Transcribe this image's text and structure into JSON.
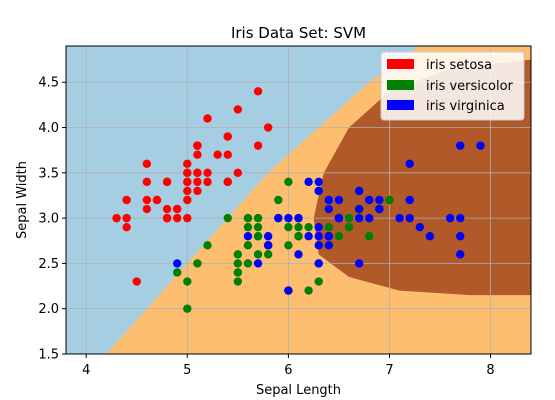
{
  "chart_data": {
    "type": "scatter",
    "title": "Iris Data Set: SVM",
    "xlabel": "Sepal Length",
    "ylabel": "Sepal Width",
    "xlim": [
      3.8,
      8.4
    ],
    "ylim": [
      1.5,
      4.9
    ],
    "xticks": [
      4,
      5,
      6,
      7,
      8
    ],
    "yticks": [
      1.5,
      2.0,
      2.5,
      3.0,
      3.5,
      4.0,
      4.5
    ],
    "grid": true,
    "legend_position": "top-right",
    "background_regions": {
      "setosa_region_color": "#a6cee3",
      "versicolor_region_color": "#fdbf6f",
      "virginica_region_color": "#b15928"
    },
    "series": [
      {
        "name": "iris setosa",
        "color": "#ff0000",
        "points": [
          [
            5.1,
            3.5
          ],
          [
            4.9,
            3.0
          ],
          [
            4.7,
            3.2
          ],
          [
            4.6,
            3.1
          ],
          [
            5.0,
            3.6
          ],
          [
            5.4,
            3.9
          ],
          [
            4.6,
            3.4
          ],
          [
            5.0,
            3.4
          ],
          [
            4.4,
            2.9
          ],
          [
            4.9,
            3.1
          ],
          [
            5.4,
            3.7
          ],
          [
            4.8,
            3.4
          ],
          [
            4.8,
            3.0
          ],
          [
            4.3,
            3.0
          ],
          [
            5.8,
            4.0
          ],
          [
            5.7,
            4.4
          ],
          [
            5.4,
            3.9
          ],
          [
            5.1,
            3.5
          ],
          [
            5.7,
            3.8
          ],
          [
            5.1,
            3.8
          ],
          [
            5.4,
            3.4
          ],
          [
            5.1,
            3.7
          ],
          [
            4.6,
            3.6
          ],
          [
            5.1,
            3.3
          ],
          [
            4.8,
            3.4
          ],
          [
            5.0,
            3.0
          ],
          [
            5.0,
            3.4
          ],
          [
            5.2,
            3.5
          ],
          [
            5.2,
            3.4
          ],
          [
            4.7,
            3.2
          ],
          [
            4.8,
            3.1
          ],
          [
            5.4,
            3.4
          ],
          [
            5.2,
            4.1
          ],
          [
            5.5,
            4.2
          ],
          [
            4.9,
            3.1
          ],
          [
            5.0,
            3.2
          ],
          [
            5.5,
            3.5
          ],
          [
            4.4,
            3.0
          ],
          [
            5.1,
            3.4
          ],
          [
            5.0,
            3.5
          ],
          [
            4.5,
            2.3
          ],
          [
            4.4,
            3.2
          ],
          [
            5.0,
            3.5
          ],
          [
            5.1,
            3.8
          ],
          [
            4.8,
            3.0
          ],
          [
            5.1,
            3.8
          ],
          [
            4.6,
            3.2
          ],
          [
            5.3,
            3.7
          ],
          [
            5.0,
            3.3
          ]
        ]
      },
      {
        "name": "iris versicolor",
        "color": "#008000",
        "points": [
          [
            7.0,
            3.2
          ],
          [
            6.4,
            3.2
          ],
          [
            6.9,
            3.1
          ],
          [
            5.5,
            2.3
          ],
          [
            6.5,
            2.8
          ],
          [
            5.7,
            2.8
          ],
          [
            6.3,
            3.3
          ],
          [
            4.9,
            2.4
          ],
          [
            6.6,
            2.9
          ],
          [
            5.2,
            2.7
          ],
          [
            5.0,
            2.0
          ],
          [
            5.9,
            3.0
          ],
          [
            6.0,
            2.2
          ],
          [
            6.1,
            2.9
          ],
          [
            5.6,
            2.9
          ],
          [
            6.7,
            3.1
          ],
          [
            5.6,
            3.0
          ],
          [
            5.8,
            2.7
          ],
          [
            6.2,
            2.2
          ],
          [
            5.6,
            2.5
          ],
          [
            5.9,
            3.2
          ],
          [
            6.1,
            2.8
          ],
          [
            6.3,
            2.5
          ],
          [
            6.1,
            2.8
          ],
          [
            6.4,
            2.9
          ],
          [
            6.6,
            3.0
          ],
          [
            6.8,
            2.8
          ],
          [
            6.7,
            3.0
          ],
          [
            6.0,
            2.9
          ],
          [
            5.7,
            2.6
          ],
          [
            5.5,
            2.4
          ],
          [
            5.5,
            2.4
          ],
          [
            5.8,
            2.7
          ],
          [
            6.0,
            2.7
          ],
          [
            5.4,
            3.0
          ],
          [
            6.0,
            3.4
          ],
          [
            6.7,
            3.1
          ],
          [
            6.3,
            2.3
          ],
          [
            5.6,
            3.0
          ],
          [
            5.5,
            2.5
          ],
          [
            5.5,
            2.6
          ],
          [
            6.1,
            3.0
          ],
          [
            5.8,
            2.6
          ],
          [
            5.0,
            2.3
          ],
          [
            5.6,
            2.7
          ],
          [
            5.7,
            3.0
          ],
          [
            5.7,
            2.9
          ],
          [
            6.2,
            2.9
          ],
          [
            5.1,
            2.5
          ],
          [
            5.7,
            2.8
          ]
        ]
      },
      {
        "name": "iris virginica",
        "color": "#0000ff",
        "points": [
          [
            6.3,
            3.3
          ],
          [
            5.8,
            2.7
          ],
          [
            7.1,
            3.0
          ],
          [
            6.3,
            2.9
          ],
          [
            6.5,
            3.0
          ],
          [
            7.6,
            3.0
          ],
          [
            4.9,
            2.5
          ],
          [
            7.3,
            2.9
          ],
          [
            6.7,
            2.5
          ],
          [
            7.2,
            3.6
          ],
          [
            6.5,
            3.2
          ],
          [
            6.4,
            2.7
          ],
          [
            6.8,
            3.0
          ],
          [
            5.7,
            2.5
          ],
          [
            5.8,
            2.8
          ],
          [
            6.4,
            3.2
          ],
          [
            6.5,
            3.0
          ],
          [
            7.7,
            3.8
          ],
          [
            7.7,
            2.6
          ],
          [
            6.0,
            2.2
          ],
          [
            6.9,
            3.2
          ],
          [
            5.6,
            2.8
          ],
          [
            7.7,
            2.8
          ],
          [
            6.3,
            2.7
          ],
          [
            6.7,
            3.3
          ],
          [
            7.2,
            3.2
          ],
          [
            6.2,
            2.8
          ],
          [
            6.1,
            3.0
          ],
          [
            6.4,
            2.8
          ],
          [
            7.2,
            3.0
          ],
          [
            7.4,
            2.8
          ],
          [
            7.9,
            3.8
          ],
          [
            6.4,
            2.8
          ],
          [
            6.3,
            2.8
          ],
          [
            6.1,
            2.6
          ],
          [
            7.7,
            3.0
          ],
          [
            6.3,
            3.4
          ],
          [
            6.4,
            3.1
          ],
          [
            6.0,
            3.0
          ],
          [
            6.9,
            3.1
          ],
          [
            6.7,
            3.1
          ],
          [
            6.9,
            3.1
          ],
          [
            5.8,
            2.7
          ],
          [
            6.8,
            3.2
          ],
          [
            6.7,
            3.3
          ],
          [
            6.7,
            3.0
          ],
          [
            6.3,
            2.5
          ],
          [
            6.5,
            3.0
          ],
          [
            6.2,
            3.4
          ],
          [
            5.9,
            3.0
          ]
        ]
      }
    ]
  }
}
